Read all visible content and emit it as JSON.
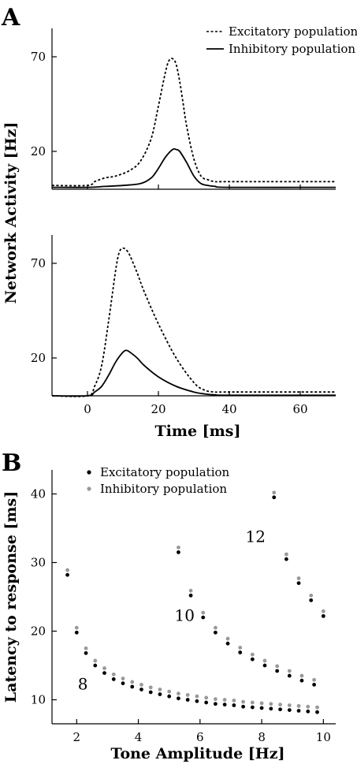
{
  "panels": {
    "a": "A",
    "b": "B"
  },
  "chart_data": [
    {
      "type": "line",
      "panel": "A",
      "subplot": "top",
      "xlim": [
        -10,
        70
      ],
      "ylim": [
        0,
        85
      ],
      "ylabel": "Network Activity [Hz]",
      "yticks": [
        20,
        70
      ],
      "legend": {
        "placement": "top-right",
        "entries": [
          "Excitatory population",
          "Inhibitory population"
        ]
      },
      "series": [
        {
          "name": "Excitatory population",
          "style": "dashed",
          "x": [
            -10,
            0,
            2,
            5,
            8,
            12,
            15,
            18,
            20,
            22,
            23,
            24,
            25,
            26,
            27,
            28,
            30,
            32,
            34,
            36,
            40,
            70
          ],
          "y": [
            2,
            2,
            4,
            6,
            7,
            10,
            15,
            27,
            44,
            62,
            68,
            69,
            66,
            57,
            45,
            33,
            16,
            7,
            5,
            4,
            4,
            4
          ]
        },
        {
          "name": "Inhibitory population",
          "style": "solid",
          "x": [
            -10,
            0,
            5,
            10,
            15,
            18,
            20,
            22,
            24,
            25,
            26,
            28,
            30,
            32,
            34,
            36,
            40,
            70
          ],
          "y": [
            1,
            1,
            1.5,
            2,
            3,
            6,
            11,
            17,
            21,
            21,
            20,
            14,
            7,
            3,
            2,
            1.5,
            1,
            1
          ]
        }
      ]
    },
    {
      "type": "line",
      "panel": "A",
      "subplot": "bottom",
      "xlim": [
        -10,
        70
      ],
      "ylim": [
        0,
        85
      ],
      "xlabel": "Time [ms]",
      "xticks": [
        0,
        20,
        40,
        60
      ],
      "yticks": [
        20,
        70
      ],
      "series": [
        {
          "name": "Excitatory population",
          "style": "dashed",
          "x": [
            -10,
            0,
            2,
            4,
            6,
            8,
            9,
            10,
            11,
            12,
            14,
            16,
            20,
            25,
            30,
            33,
            36,
            40,
            70
          ],
          "y": [
            0,
            0,
            5,
            16,
            40,
            67,
            76,
            78,
            77,
            74,
            65,
            55,
            38,
            20,
            7,
            3,
            2,
            2,
            2
          ]
        },
        {
          "name": "Inhibitory population",
          "style": "solid",
          "x": [
            -10,
            0,
            2,
            4,
            6,
            8,
            10,
            11,
            12,
            14,
            16,
            20,
            25,
            30,
            33,
            36,
            40,
            70
          ],
          "y": [
            0,
            0,
            2,
            5,
            11,
            18,
            23,
            24,
            23,
            20,
            16,
            10,
            5,
            2,
            1,
            0.5,
            0.3,
            0.3
          ]
        }
      ]
    },
    {
      "type": "scatter",
      "panel": "B",
      "xlabel": "Tone Amplitude [Hz]",
      "ylabel": "Latency to response [ms]",
      "xlim": [
        1.2,
        10.4
      ],
      "ylim": [
        6.5,
        43.5
      ],
      "xticks": [
        2,
        4,
        6,
        8,
        10
      ],
      "yticks": [
        10,
        20,
        30,
        40
      ],
      "legend": {
        "placement": "top-left",
        "entries": [
          "Excitatory population",
          "Inhibitory population"
        ]
      },
      "curve_labels": [
        {
          "text": "8",
          "x": 2.2,
          "y": 11.5
        },
        {
          "text": "10",
          "x": 5.5,
          "y": 21.5
        },
        {
          "text": "12",
          "x": 7.8,
          "y": 33.0
        }
      ],
      "series": [
        {
          "name": "Excitatory population",
          "color": "#000000",
          "x": [
            1.7,
            2.0,
            2.3,
            2.6,
            2.9,
            3.2,
            3.5,
            3.8,
            4.1,
            4.4,
            4.7,
            5.0,
            5.3,
            5.6,
            5.9,
            6.2,
            6.5,
            6.8,
            7.1,
            7.4,
            7.7,
            8.0,
            8.3,
            8.6,
            8.9,
            9.2,
            9.5,
            9.8,
            5.3,
            5.7,
            6.1,
            6.5,
            6.9,
            7.3,
            7.7,
            8.1,
            8.5,
            8.9,
            9.3,
            9.7,
            8.4,
            8.8,
            9.2,
            9.6,
            10.0
          ],
          "y": [
            28.2,
            19.8,
            16.8,
            15.0,
            13.9,
            13.0,
            12.4,
            11.9,
            11.5,
            11.1,
            10.8,
            10.5,
            10.2,
            10.0,
            9.8,
            9.6,
            9.4,
            9.3,
            9.2,
            9.0,
            8.9,
            8.8,
            8.7,
            8.6,
            8.5,
            8.4,
            8.3,
            8.2,
            31.5,
            25.2,
            22.0,
            19.8,
            18.2,
            16.9,
            15.9,
            15.0,
            14.2,
            13.5,
            12.8,
            12.2,
            39.5,
            30.5,
            27.0,
            24.5,
            22.2
          ]
        },
        {
          "name": "Inhibitory population",
          "color": "#999999",
          "x": [
            1.7,
            2.0,
            2.3,
            2.6,
            2.9,
            3.2,
            3.5,
            3.8,
            4.1,
            4.4,
            4.7,
            5.0,
            5.3,
            5.6,
            5.9,
            6.2,
            6.5,
            6.8,
            7.1,
            7.4,
            7.7,
            8.0,
            8.3,
            8.6,
            8.9,
            9.2,
            9.5,
            9.8,
            5.3,
            5.7,
            6.1,
            6.5,
            6.9,
            7.3,
            7.7,
            8.1,
            8.5,
            8.9,
            9.3,
            9.7,
            8.4,
            8.8,
            9.2,
            9.6,
            10.0
          ],
          "y": [
            28.9,
            20.5,
            17.5,
            15.7,
            14.6,
            13.7,
            13.1,
            12.6,
            12.2,
            11.8,
            11.5,
            11.2,
            10.9,
            10.7,
            10.5,
            10.3,
            10.1,
            10.0,
            9.9,
            9.7,
            9.6,
            9.5,
            9.4,
            9.3,
            9.2,
            9.1,
            9.0,
            8.9,
            32.2,
            25.9,
            22.7,
            20.5,
            18.9,
            17.6,
            16.6,
            15.7,
            14.9,
            14.2,
            13.5,
            12.9,
            40.2,
            31.2,
            27.7,
            25.2,
            22.9
          ]
        }
      ]
    }
  ]
}
